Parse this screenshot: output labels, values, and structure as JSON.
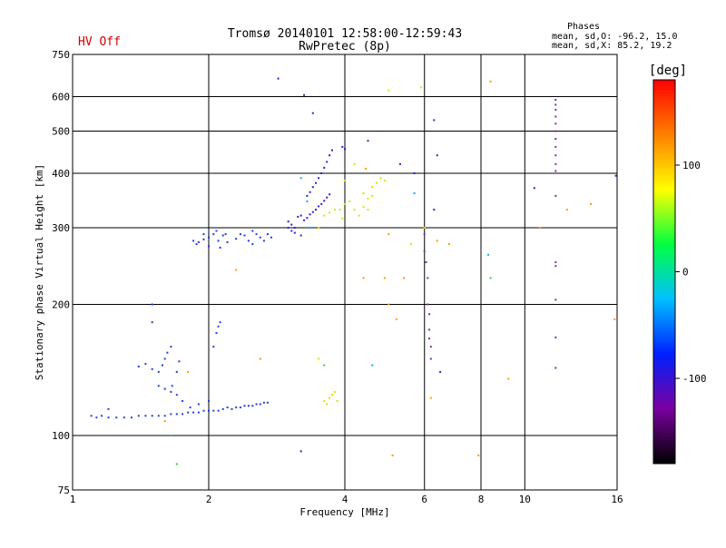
{
  "header": {
    "title_line1": "Tromsø 20140101 12:58:00-12:59:43",
    "title_line2": "RwPretec (8p)",
    "hv_status": "HV Off",
    "phases_label": "Phases",
    "stats_o": "mean, sd,O: -96.2, 15.0",
    "stats_x": "mean, sd,X:  85.2, 19.2"
  },
  "chart_data": {
    "type": "scatter",
    "xlabel": "Frequency [MHz]",
    "ylabel": "Stationary phase Virtual Height [km]",
    "x_scale": "log",
    "y_scale": "log",
    "xlim": [
      1,
      16
    ],
    "ylim": [
      75,
      750
    ],
    "x_ticks": [
      1,
      2,
      4,
      6,
      8,
      10,
      16
    ],
    "x_tick_labels": [
      "1",
      "2",
      "4",
      "6",
      "8",
      "10",
      "16"
    ],
    "x_gridlines": [
      2,
      4,
      6,
      8,
      10
    ],
    "y_ticks": [
      75,
      100,
      200,
      300,
      400,
      500,
      600,
      750
    ],
    "y_tick_labels": [
      "75",
      "100",
      "200",
      "300",
      "400",
      "500",
      "600",
      "750"
    ],
    "y_gridlines": [
      100,
      200,
      300,
      400,
      500,
      600
    ],
    "grid": true,
    "colorbar": {
      "label": "[deg]",
      "range": [
        -180,
        180
      ],
      "ticks": [
        100,
        0,
        -100
      ],
      "tick_labels": [
        "100",
        "0",
        "-100"
      ],
      "stops": [
        "#000000",
        "#7a00a0",
        "#0020ff",
        "#00c0ff",
        "#00ff40",
        "#ffff00",
        "#ff8000",
        "#ff0000"
      ]
    },
    "series": [
      {
        "color": "#1f3fe0",
        "points": [
          [
            1.1,
            111
          ],
          [
            1.13,
            110
          ],
          [
            1.16,
            111
          ],
          [
            1.2,
            110
          ],
          [
            1.25,
            110
          ],
          [
            1.3,
            110
          ],
          [
            1.35,
            110
          ],
          [
            1.4,
            111
          ],
          [
            1.45,
            111
          ],
          [
            1.5,
            111
          ],
          [
            1.55,
            111
          ],
          [
            1.6,
            111
          ],
          [
            1.65,
            112
          ],
          [
            1.7,
            112
          ],
          [
            1.75,
            112
          ],
          [
            1.8,
            113
          ],
          [
            1.85,
            113
          ],
          [
            1.9,
            113
          ],
          [
            1.95,
            114
          ],
          [
            2.0,
            114
          ],
          [
            2.05,
            114
          ],
          [
            2.1,
            114
          ],
          [
            2.15,
            115
          ],
          [
            2.2,
            116
          ],
          [
            2.25,
            115
          ],
          [
            2.3,
            116
          ],
          [
            2.35,
            116
          ],
          [
            2.4,
            117
          ],
          [
            2.45,
            117
          ],
          [
            2.5,
            117
          ],
          [
            2.55,
            118
          ],
          [
            2.6,
            118
          ],
          [
            2.65,
            119
          ],
          [
            2.7,
            119
          ],
          [
            1.2,
            115
          ],
          [
            1.4,
            144
          ],
          [
            1.45,
            146
          ],
          [
            1.5,
            142
          ],
          [
            1.55,
            140
          ],
          [
            1.58,
            145
          ],
          [
            1.6,
            150
          ],
          [
            1.62,
            155
          ],
          [
            1.65,
            160
          ],
          [
            1.66,
            130
          ],
          [
            1.7,
            140
          ],
          [
            1.72,
            148
          ],
          [
            1.55,
            130
          ],
          [
            1.6,
            128
          ],
          [
            1.65,
            126
          ],
          [
            1.7,
            124
          ],
          [
            1.75,
            120
          ],
          [
            1.82,
            116
          ],
          [
            1.9,
            118
          ],
          [
            2.0,
            120
          ],
          [
            2.05,
            160
          ],
          [
            2.08,
            172
          ],
          [
            2.1,
            178
          ],
          [
            2.12,
            182
          ],
          [
            1.5,
            200
          ],
          [
            1.5,
            182
          ],
          [
            1.85,
            280
          ],
          [
            1.88,
            275
          ],
          [
            1.9,
            278
          ],
          [
            1.95,
            282
          ],
          [
            2.0,
            285
          ],
          [
            2.0,
            272
          ],
          [
            2.05,
            290
          ],
          [
            2.08,
            295
          ],
          [
            2.1,
            280
          ],
          [
            2.12,
            270
          ],
          [
            2.15,
            288
          ],
          [
            2.18,
            290
          ],
          [
            2.2,
            278
          ],
          [
            2.3,
            283
          ],
          [
            2.35,
            290
          ],
          [
            2.4,
            288
          ],
          [
            2.45,
            280
          ],
          [
            2.5,
            275
          ],
          [
            2.5,
            295
          ],
          [
            2.55,
            290
          ],
          [
            2.6,
            285
          ],
          [
            2.65,
            280
          ],
          [
            2.7,
            290
          ],
          [
            2.75,
            285
          ],
          [
            1.95,
            290
          ]
        ]
      },
      {
        "color": "#3020d0",
        "points": [
          [
            3.0,
            310
          ],
          [
            3.05,
            305
          ],
          [
            3.1,
            300
          ],
          [
            3.15,
            318
          ],
          [
            3.2,
            320
          ],
          [
            3.25,
            312
          ],
          [
            3.3,
            316
          ],
          [
            3.35,
            322
          ],
          [
            3.4,
            326
          ],
          [
            3.45,
            330
          ],
          [
            3.5,
            336
          ],
          [
            3.55,
            340
          ],
          [
            3.6,
            346
          ],
          [
            3.65,
            352
          ],
          [
            3.7,
            358
          ],
          [
            3.4,
            372
          ],
          [
            3.45,
            380
          ],
          [
            3.5,
            390
          ],
          [
            3.55,
            400
          ],
          [
            3.6,
            412
          ],
          [
            3.65,
            425
          ],
          [
            3.7,
            440
          ],
          [
            3.75,
            452
          ],
          [
            3.3,
            355
          ],
          [
            3.35,
            362
          ],
          [
            3.0,
            300
          ],
          [
            3.05,
            295
          ],
          [
            3.1,
            292
          ],
          [
            3.2,
            288
          ],
          [
            2.85,
            660
          ],
          [
            3.25,
            605
          ],
          [
            3.4,
            550
          ],
          [
            3.2,
            92
          ],
          [
            3.95,
            460
          ],
          [
            4.0,
            455
          ],
          [
            4.5,
            475
          ],
          [
            5.7,
            400
          ],
          [
            5.3,
            420
          ],
          [
            6.3,
            530
          ],
          [
            6.4,
            440
          ],
          [
            6.3,
            330
          ],
          [
            6.5,
            140
          ],
          [
            10.5,
            370
          ],
          [
            15.9,
            395
          ]
        ]
      },
      {
        "color": "#e0e000",
        "points": [
          [
            3.6,
            320
          ],
          [
            3.7,
            325
          ],
          [
            3.8,
            330
          ],
          [
            3.9,
            330
          ],
          [
            3.95,
            315
          ],
          [
            4.0,
            340
          ],
          [
            4.1,
            345
          ],
          [
            4.2,
            330
          ],
          [
            4.3,
            320
          ],
          [
            4.4,
            335
          ],
          [
            4.5,
            350
          ],
          [
            4.6,
            355
          ],
          [
            4.7,
            380
          ],
          [
            4.8,
            390
          ],
          [
            4.9,
            385
          ],
          [
            4.4,
            360
          ],
          [
            4.6,
            372
          ],
          [
            3.85,
            120
          ],
          [
            3.6,
            120
          ],
          [
            3.7,
            122
          ],
          [
            3.75,
            124
          ],
          [
            3.8,
            126
          ],
          [
            3.65,
            118
          ],
          [
            3.5,
            300
          ],
          [
            3.5,
            150
          ],
          [
            4.0,
            385
          ],
          [
            4.2,
            420
          ],
          [
            5.6,
            275
          ],
          [
            6.0,
            300
          ],
          [
            4.5,
            330
          ],
          [
            5.0,
            620
          ],
          [
            5.9,
            630
          ]
        ]
      },
      {
        "color": "#ff9900",
        "points": [
          [
            8.4,
            650
          ],
          [
            4.45,
            410
          ],
          [
            5.0,
            290
          ],
          [
            4.9,
            230
          ],
          [
            5.0,
            200
          ],
          [
            5.2,
            185
          ],
          [
            5.4,
            230
          ],
          [
            6.2,
            122
          ],
          [
            6.4,
            280
          ],
          [
            6.8,
            275
          ],
          [
            7.9,
            90
          ],
          [
            9.2,
            135
          ],
          [
            10.8,
            300
          ],
          [
            12.4,
            330
          ],
          [
            14.0,
            340
          ],
          [
            15.8,
            185
          ],
          [
            2.6,
            150
          ],
          [
            2.3,
            240
          ],
          [
            1.6,
            108
          ],
          [
            1.8,
            140
          ],
          [
            4.4,
            230
          ],
          [
            5.1,
            90
          ]
        ]
      },
      {
        "color": "#7a30a0",
        "points": [
          [
            11.7,
            590
          ],
          [
            11.7,
            575
          ],
          [
            11.7,
            560
          ],
          [
            11.7,
            540
          ],
          [
            11.7,
            520
          ],
          [
            11.7,
            500
          ],
          [
            11.7,
            480
          ],
          [
            11.7,
            460
          ],
          [
            11.7,
            440
          ],
          [
            11.7,
            420
          ],
          [
            11.7,
            405
          ],
          [
            11.7,
            355
          ],
          [
            11.7,
            250
          ],
          [
            11.7,
            245
          ],
          [
            11.7,
            205
          ],
          [
            11.7,
            168
          ],
          [
            11.7,
            143
          ],
          [
            6.0,
            290
          ],
          [
            6.0,
            265
          ],
          [
            6.05,
            250
          ],
          [
            6.1,
            230
          ],
          [
            6.1,
            200
          ],
          [
            6.15,
            190
          ],
          [
            6.15,
            175
          ],
          [
            6.15,
            167
          ],
          [
            6.2,
            160
          ],
          [
            6.2,
            150
          ]
        ]
      },
      {
        "color": "#40c040",
        "points": [
          [
            1.65,
            100
          ],
          [
            1.7,
            86
          ],
          [
            3.6,
            145
          ],
          [
            8.4,
            230
          ]
        ]
      },
      {
        "color": "#00b0ff",
        "points": [
          [
            3.2,
            390
          ],
          [
            3.3,
            345
          ],
          [
            3.35,
            300
          ],
          [
            4.6,
            145
          ],
          [
            5.7,
            360
          ],
          [
            8.3,
            260
          ]
        ]
      }
    ]
  }
}
